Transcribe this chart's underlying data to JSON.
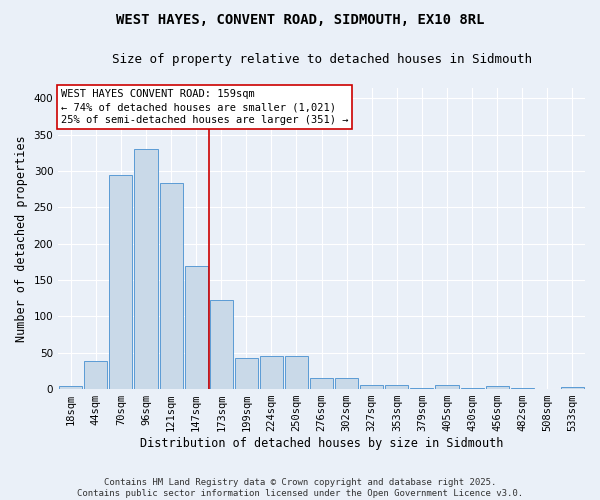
{
  "title_line1": "WEST HAYES, CONVENT ROAD, SIDMOUTH, EX10 8RL",
  "title_line2": "Size of property relative to detached houses in Sidmouth",
  "xlabel": "Distribution of detached houses by size in Sidmouth",
  "ylabel": "Number of detached properties",
  "bar_labels": [
    "18sqm",
    "44sqm",
    "70sqm",
    "96sqm",
    "121sqm",
    "147sqm",
    "173sqm",
    "199sqm",
    "224sqm",
    "250sqm",
    "276sqm",
    "302sqm",
    "327sqm",
    "353sqm",
    "379sqm",
    "405sqm",
    "430sqm",
    "456sqm",
    "482sqm",
    "508sqm",
    "533sqm"
  ],
  "bar_values": [
    4,
    39,
    295,
    330,
    283,
    170,
    122,
    43,
    46,
    46,
    15,
    15,
    5,
    6,
    1,
    6,
    1,
    4,
    1,
    0,
    3
  ],
  "bar_color": "#c9d9e8",
  "bar_edge_color": "#5b9bd5",
  "vline_index": 5.5,
  "vline_color": "#cc0000",
  "annotation_text": "WEST HAYES CONVENT ROAD: 159sqm\n← 74% of detached houses are smaller (1,021)\n25% of semi-detached houses are larger (351) →",
  "annotation_box_color": "#ffffff",
  "annotation_box_edge": "#cc0000",
  "ylim": [
    0,
    415
  ],
  "yticks": [
    0,
    50,
    100,
    150,
    200,
    250,
    300,
    350,
    400
  ],
  "bg_color": "#eaf0f8",
  "plot_bg_color": "#eaf0f8",
  "footer_text": "Contains HM Land Registry data © Crown copyright and database right 2025.\nContains public sector information licensed under the Open Government Licence v3.0.",
  "title_fontsize": 10,
  "subtitle_fontsize": 9,
  "axis_label_fontsize": 8.5,
  "tick_fontsize": 7.5,
  "annotation_fontsize": 7.5,
  "footer_fontsize": 6.5
}
